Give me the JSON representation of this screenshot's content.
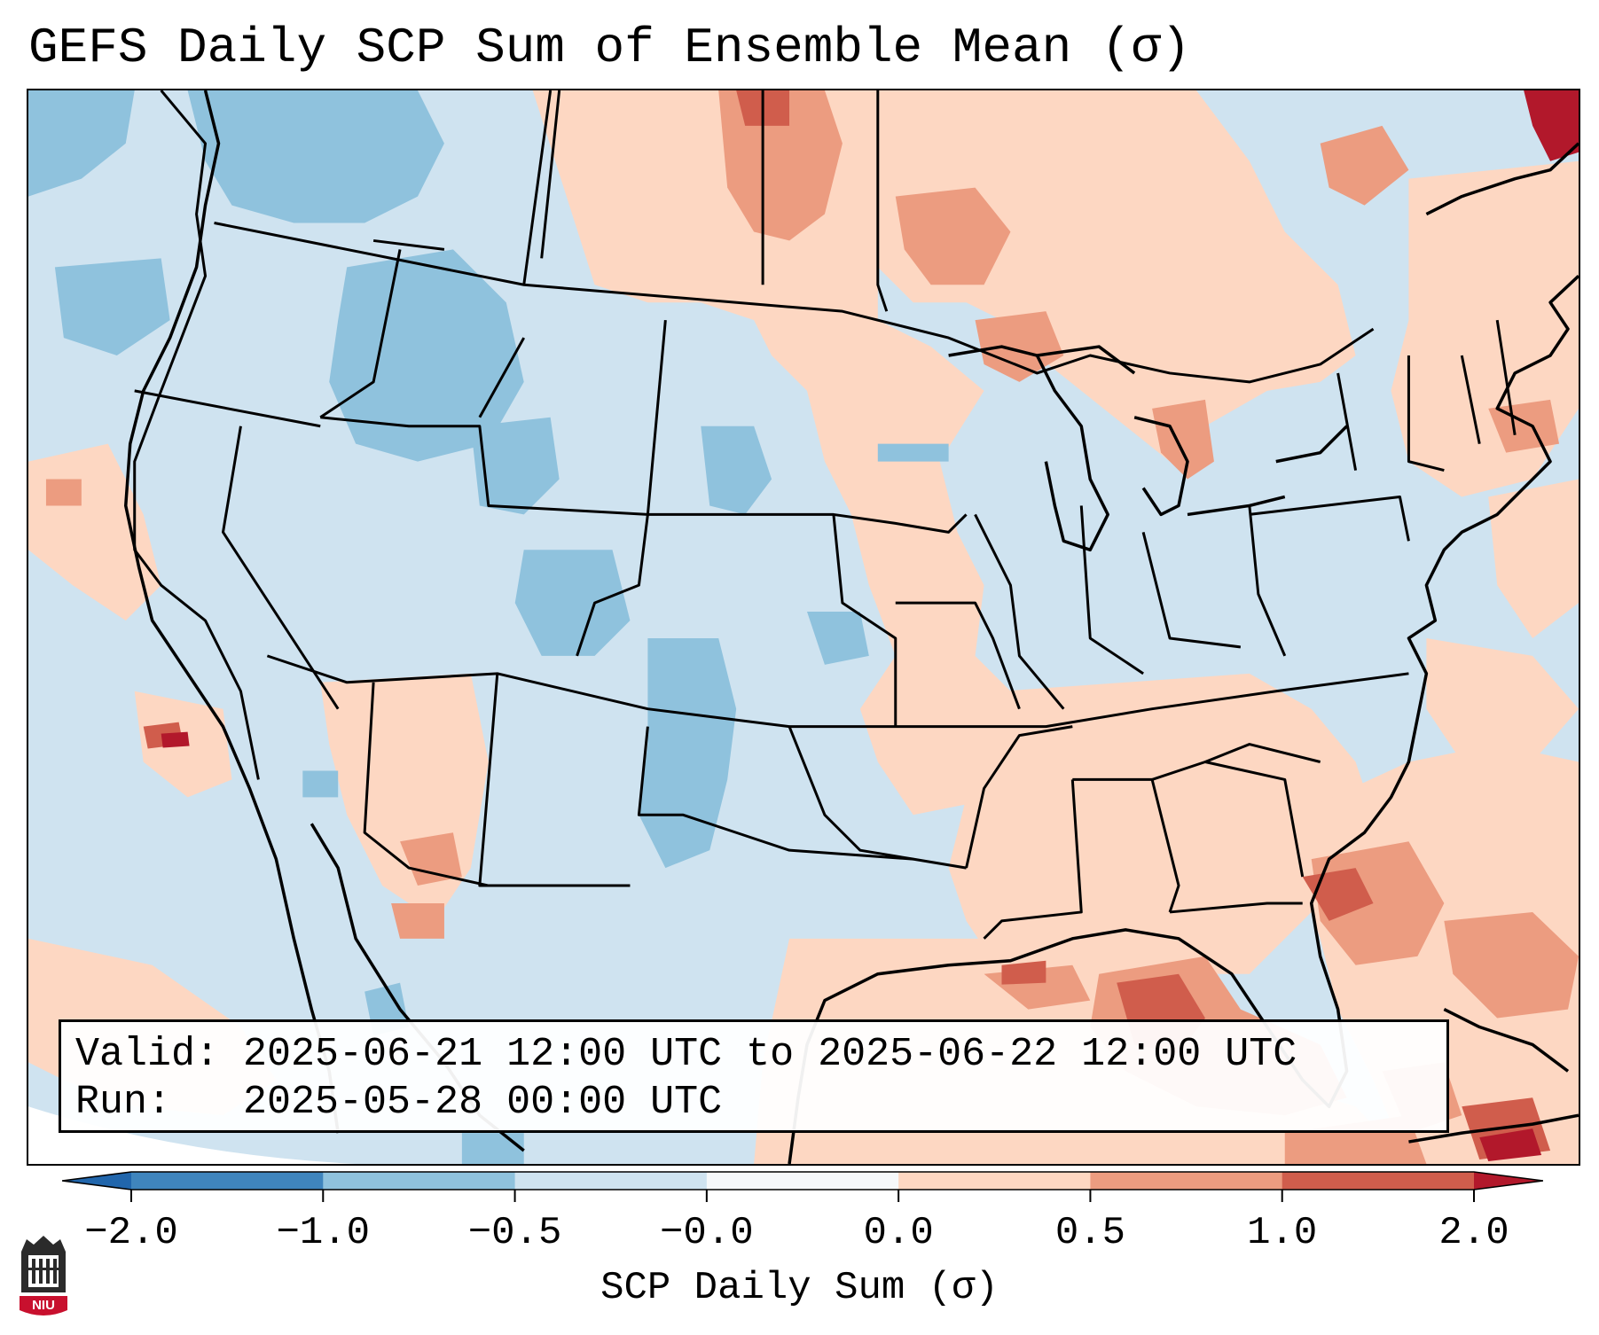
{
  "title": "GEFS Daily SCP Sum of Ensemble Mean (σ)",
  "info": {
    "valid_line": "Valid: 2025-06-21 12:00 UTC to 2025-06-22 12:00 UTC",
    "run_line": "Run:   2025-05-28 00:00 UTC"
  },
  "colorbar": {
    "label": "SCP Daily Sum (σ)",
    "ticks": [
      "−2.0",
      "−1.0",
      "−0.5",
      "−0.0",
      "0.0",
      "0.5",
      "1.0",
      "2.0"
    ],
    "bin_colors": [
      "#3f85bd",
      "#8fc2dd",
      "#cfe3f0",
      "#f6f8fa",
      "#fdd7c2",
      "#ec9c80",
      "#d05d4c"
    ],
    "extend_low_color": "#2166ac",
    "extend_high_color": "#b2182b"
  },
  "legend_colors": {
    "strong_negative": "#8fc2dd",
    "weak_negative": "#cfe3f0",
    "weak_positive": "#fdd7c2",
    "moderate_positive": "#ec9c80",
    "strong_positive": "#d05d4c",
    "extreme_positive": "#b2182b"
  },
  "logo": {
    "text": "NIU",
    "icon": "university-building-icon"
  }
}
